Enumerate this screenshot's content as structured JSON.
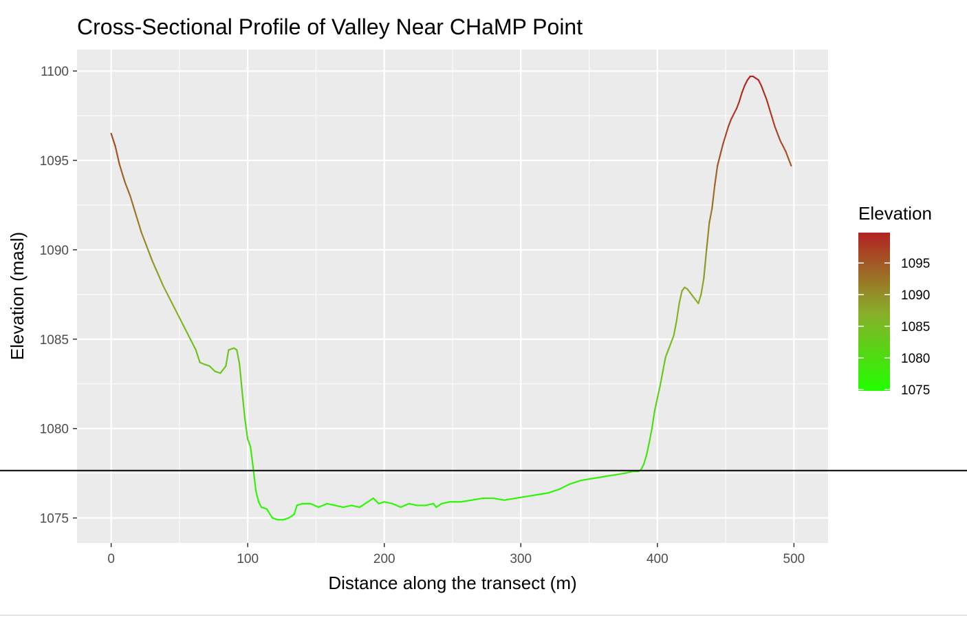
{
  "chart_data": {
    "type": "line",
    "title": "Cross-Sectional Profile of Valley Near CHaMP Point",
    "xlabel": "Distance along the transect (m)",
    "ylabel": "Elevation (masl)",
    "xlim": [
      -25,
      525
    ],
    "ylim": [
      1073.6,
      1101.2
    ],
    "x_ticks": [
      0,
      100,
      200,
      300,
      400,
      500
    ],
    "y_ticks": [
      1075,
      1080,
      1085,
      1090,
      1095,
      1100
    ],
    "x_tick_labels": [
      "0",
      "100",
      "200",
      "300",
      "400",
      "500"
    ],
    "y_tick_labels": [
      "1075",
      "1080",
      "1085",
      "1090",
      "1095",
      "1100"
    ],
    "grid": true,
    "background": "#ebebeb",
    "reference_line": {
      "y": 1077.65,
      "color": "#000000"
    },
    "color_scale": {
      "low": "#22ff00",
      "mid": "#8aad2a",
      "high": "#b22222",
      "min": 1074.8,
      "max": 1099.8
    },
    "legend": {
      "title": "Elevation",
      "position": "right",
      "breaks": [
        1095,
        1090,
        1085,
        1080,
        1075
      ],
      "labels": [
        "1095",
        "1090",
        "1085",
        "1080",
        "1075"
      ]
    },
    "series": [
      {
        "x": [
          0,
          3,
          6,
          10,
          14,
          18,
          22,
          26,
          30,
          34,
          38,
          42,
          46,
          50,
          54,
          58,
          62,
          65,
          68,
          72,
          76,
          80,
          84,
          86,
          90,
          92,
          94,
          96,
          98,
          100,
          102,
          104,
          106,
          108,
          110,
          114,
          118,
          122,
          126,
          130,
          134,
          136,
          140,
          146,
          152,
          158,
          164,
          170,
          176,
          182,
          188,
          192,
          196,
          200,
          206,
          212,
          218,
          224,
          230,
          236,
          238,
          242,
          248,
          256,
          264,
          272,
          280,
          288,
          296,
          304,
          312,
          320,
          328,
          336,
          344,
          352,
          360,
          368,
          376,
          382,
          386,
          388,
          390,
          392,
          394,
          396,
          398,
          400,
          402,
          404,
          406,
          408,
          410,
          412,
          414,
          416,
          418,
          420,
          422,
          424,
          426,
          428,
          430,
          432,
          434,
          436,
          438,
          440,
          442,
          444,
          446,
          448,
          450,
          452,
          454,
          456,
          458,
          460,
          462,
          464,
          466,
          468,
          470,
          472,
          474,
          476,
          478,
          480,
          482,
          484,
          486,
          488,
          490,
          492,
          494,
          496,
          498
        ],
        "y": [
          1096.5,
          1095.8,
          1094.8,
          1093.8,
          1093.0,
          1092.0,
          1091.0,
          1090.2,
          1089.4,
          1088.7,
          1088.0,
          1087.4,
          1086.8,
          1086.2,
          1085.6,
          1085.0,
          1084.4,
          1083.7,
          1083.6,
          1083.5,
          1083.2,
          1083.1,
          1083.5,
          1084.4,
          1084.5,
          1084.4,
          1083.6,
          1082.0,
          1080.5,
          1079.4,
          1079.0,
          1077.8,
          1076.5,
          1075.9,
          1075.6,
          1075.5,
          1075.0,
          1074.9,
          1074.9,
          1075.0,
          1075.2,
          1075.7,
          1075.8,
          1075.8,
          1075.6,
          1075.8,
          1075.7,
          1075.6,
          1075.7,
          1075.6,
          1075.9,
          1076.1,
          1075.8,
          1075.9,
          1075.8,
          1075.6,
          1075.8,
          1075.7,
          1075.7,
          1075.8,
          1075.6,
          1075.8,
          1075.9,
          1075.9,
          1076.0,
          1076.1,
          1076.1,
          1076.0,
          1076.1,
          1076.2,
          1076.3,
          1076.4,
          1076.6,
          1076.9,
          1077.1,
          1077.2,
          1077.3,
          1077.4,
          1077.5,
          1077.6,
          1077.6,
          1077.7,
          1078.0,
          1078.5,
          1079.2,
          1080.0,
          1081.0,
          1081.7,
          1082.4,
          1083.2,
          1084.0,
          1084.4,
          1084.8,
          1085.2,
          1086.0,
          1087.0,
          1087.7,
          1087.9,
          1087.8,
          1087.6,
          1087.4,
          1087.2,
          1087.0,
          1087.5,
          1088.4,
          1090.0,
          1091.5,
          1092.3,
          1093.6,
          1094.7,
          1095.3,
          1095.9,
          1096.4,
          1096.9,
          1097.3,
          1097.6,
          1097.9,
          1098.3,
          1098.8,
          1099.2,
          1099.5,
          1099.7,
          1099.7,
          1099.6,
          1099.5,
          1099.2,
          1098.8,
          1098.4,
          1097.9,
          1097.4,
          1096.9,
          1096.5,
          1096.1,
          1095.8,
          1095.5,
          1095.1,
          1094.7
        ]
      }
    ]
  }
}
